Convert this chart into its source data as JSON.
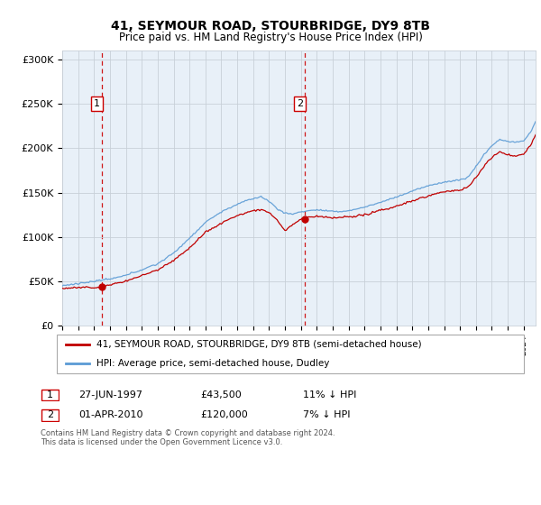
{
  "title": "41, SEYMOUR ROAD, STOURBRIDGE, DY9 8TB",
  "subtitle": "Price paid vs. HM Land Registry's House Price Index (HPI)",
  "ylabel_ticks": [
    "£0",
    "£50K",
    "£100K",
    "£150K",
    "£200K",
    "£250K",
    "£300K"
  ],
  "ylim": [
    0,
    310000
  ],
  "yticks": [
    0,
    50000,
    100000,
    150000,
    200000,
    250000,
    300000
  ],
  "sale1_date_num": 1997.49,
  "sale1_price": 43500,
  "sale2_date_num": 2010.25,
  "sale2_price": 120000,
  "hpi_color": "#5b9bd5",
  "price_color": "#c00000",
  "dashed_line_color": "#cc0000",
  "bg_color": "#e8f0f8",
  "grid_color": "#c8d0d8",
  "legend_line1": "41, SEYMOUR ROAD, STOURBRIDGE, DY9 8TB (semi-detached house)",
  "legend_line2": "HPI: Average price, semi-detached house, Dudley",
  "table_row1": [
    "1",
    "27-JUN-1997",
    "£43,500",
    "11% ↓ HPI"
  ],
  "table_row2": [
    "2",
    "01-APR-2010",
    "£120,000",
    "7% ↓ HPI"
  ],
  "footnote": "Contains HM Land Registry data © Crown copyright and database right 2024.\nThis data is licensed under the Open Government Licence v3.0.",
  "xlim_start": 1995.0,
  "xlim_end": 2024.75
}
